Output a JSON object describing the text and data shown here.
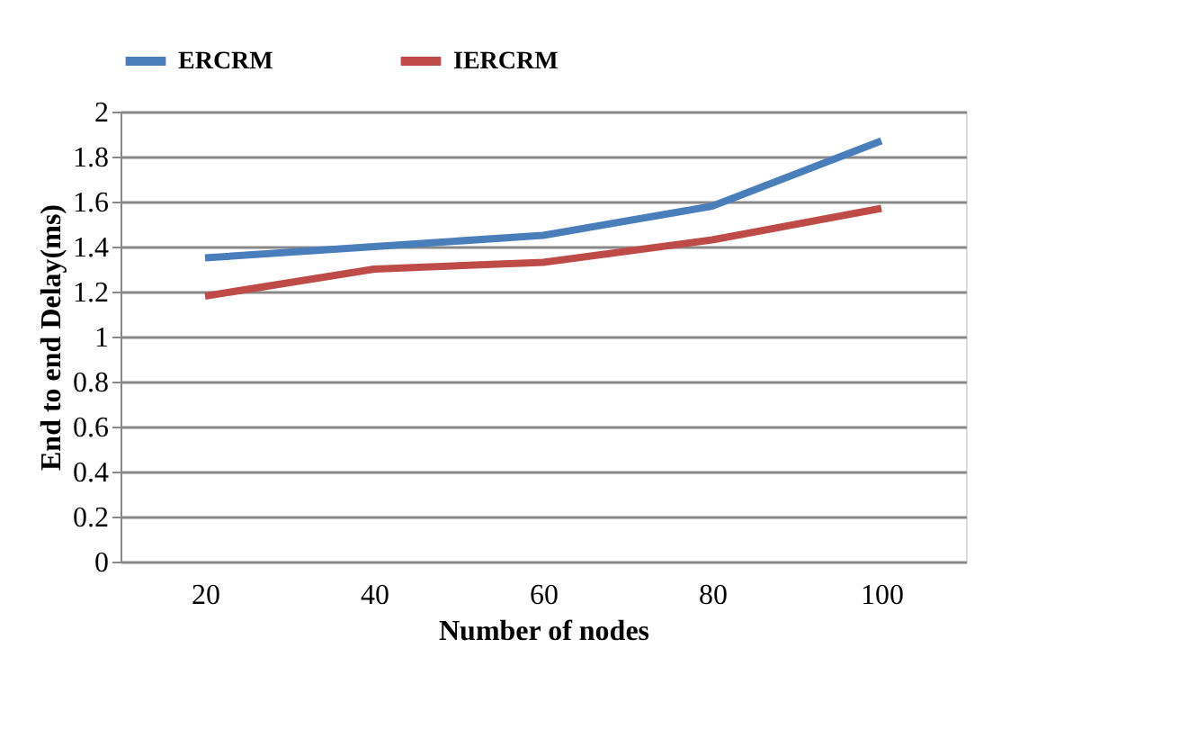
{
  "chart_data": {
    "type": "line",
    "categories": [
      "20",
      "40",
      "60",
      "80",
      "100"
    ],
    "xlabel": "Number of nodes",
    "ylabel": "End to end Delay(ms)",
    "ylim": [
      0,
      2
    ],
    "yticks": [
      0,
      0.2,
      0.4,
      0.6,
      0.8,
      1,
      1.2,
      1.4,
      1.6,
      1.8,
      2
    ],
    "grid": "y",
    "legend": "top",
    "marker": "none",
    "line_style": "solid",
    "series": [
      {
        "name": "ERCRM",
        "color": "#4a7ebb",
        "values": [
          1.35,
          1.4,
          1.45,
          1.58,
          1.87
        ]
      },
      {
        "name": "IERCRM",
        "color": "#be4b48",
        "values": [
          1.18,
          1.3,
          1.33,
          1.43,
          1.57
        ]
      }
    ]
  }
}
